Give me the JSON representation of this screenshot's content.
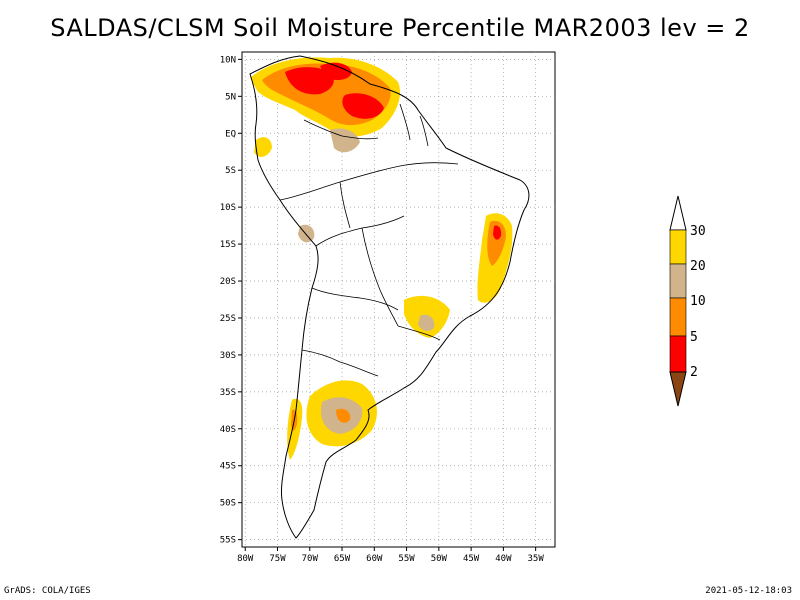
{
  "title": "SALDAS/CLSM Soil Moisture Percentile MAR2003 lev = 2",
  "footer": {
    "software": "GrADS: COLA/IGES",
    "timestamp": "2021-05-12-18:03"
  },
  "axes": {
    "lat_labels": [
      "10N",
      "5N",
      "EQ",
      "5S",
      "10S",
      "15S",
      "20S",
      "25S",
      "30S",
      "35S",
      "40S",
      "45S",
      "50S",
      "55S"
    ],
    "lat_values": [
      10,
      5,
      0,
      -5,
      -10,
      -15,
      -20,
      -25,
      -30,
      -35,
      -40,
      -45,
      -50,
      -55
    ],
    "lon_labels": [
      "80W",
      "75W",
      "70W",
      "65W",
      "60W",
      "55W",
      "50W",
      "45W",
      "40W",
      "35W"
    ],
    "lon_values": [
      -80,
      -75,
      -70,
      -65,
      -60,
      -55,
      -50,
      -45,
      -40,
      -35
    ]
  },
  "legend": {
    "labels": [
      "2",
      "5",
      "10",
      "20",
      "30"
    ],
    "colors": [
      "#8b4513",
      "#ff0000",
      "#ff8c00",
      "#d2b48c",
      "#ffd700",
      "#ffffff"
    ]
  },
  "chart_data": {
    "type": "map",
    "region": "South America",
    "variable": "Soil Moisture Percentile",
    "period": "MAR2003",
    "level": 2,
    "lon_range": [
      -80.5,
      -32
    ],
    "lat_range": [
      -56,
      11
    ],
    "bins": [
      {
        "range": "<2",
        "color": "#8b4513"
      },
      {
        "range": "2-5",
        "color": "#ff0000"
      },
      {
        "range": "5-10",
        "color": "#ff8c00"
      },
      {
        "range": "10-20",
        "color": "#d2b48c"
      },
      {
        "range": "20-30",
        "color": "#ffd700"
      },
      {
        "range": ">30",
        "color": "#ffffff"
      }
    ]
  }
}
